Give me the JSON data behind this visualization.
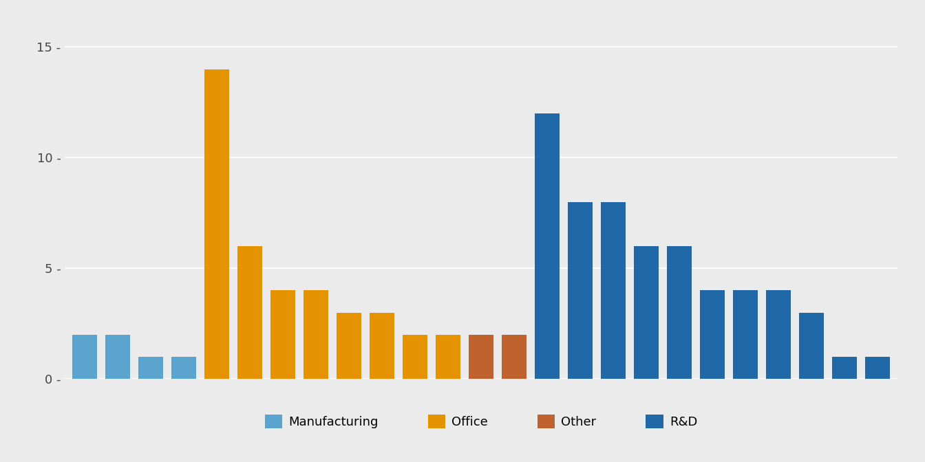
{
  "bars": [
    {
      "value": 2,
      "color": "#5BA4CF",
      "group": "Manufacturing"
    },
    {
      "value": 2,
      "color": "#5BA4CF",
      "group": "Manufacturing"
    },
    {
      "value": 1,
      "color": "#5BA4CF",
      "group": "Manufacturing"
    },
    {
      "value": 1,
      "color": "#5BA4CF",
      "group": "Manufacturing"
    },
    {
      "value": 14,
      "color": "#E59400",
      "group": "Office"
    },
    {
      "value": 6,
      "color": "#E59400",
      "group": "Office"
    },
    {
      "value": 4,
      "color": "#E59400",
      "group": "Office"
    },
    {
      "value": 4,
      "color": "#E59400",
      "group": "Office"
    },
    {
      "value": 3,
      "color": "#E59400",
      "group": "Office"
    },
    {
      "value": 3,
      "color": "#E59400",
      "group": "Office"
    },
    {
      "value": 2,
      "color": "#E59400",
      "group": "Office"
    },
    {
      "value": 2,
      "color": "#E59400",
      "group": "Office"
    },
    {
      "value": 2,
      "color": "#C0622D",
      "group": "Other"
    },
    {
      "value": 2,
      "color": "#C0622D",
      "group": "Other"
    },
    {
      "value": 12,
      "color": "#2068A8",
      "group": "R&D"
    },
    {
      "value": 8,
      "color": "#2068A8",
      "group": "R&D"
    },
    {
      "value": 8,
      "color": "#2068A8",
      "group": "R&D"
    },
    {
      "value": 6,
      "color": "#2068A8",
      "group": "R&D"
    },
    {
      "value": 6,
      "color": "#2068A8",
      "group": "R&D"
    },
    {
      "value": 4,
      "color": "#2068A8",
      "group": "R&D"
    },
    {
      "value": 4,
      "color": "#2068A8",
      "group": "R&D"
    },
    {
      "value": 4,
      "color": "#2068A8",
      "group": "R&D"
    },
    {
      "value": 3,
      "color": "#2068A8",
      "group": "R&D"
    },
    {
      "value": 1,
      "color": "#2068A8",
      "group": "R&D"
    },
    {
      "value": 1,
      "color": "#2068A8",
      "group": "R&D"
    }
  ],
  "legend": [
    {
      "label": "Manufacturing",
      "color": "#5BA4CF"
    },
    {
      "label": "Office",
      "color": "#E59400"
    },
    {
      "label": "Other",
      "color": "#C0622D"
    },
    {
      "label": "R&D",
      "color": "#2068A8"
    }
  ],
  "ylim": [
    0,
    16.5
  ],
  "yticks": [
    0,
    5,
    10,
    15
  ],
  "background_color": "#EBEBEB",
  "grid_color": "#FFFFFF",
  "bar_width": 0.75
}
